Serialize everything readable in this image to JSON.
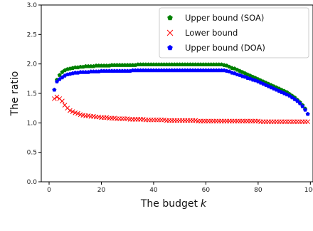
{
  "chart_data": {
    "type": "scatter",
    "title": "",
    "xlabel": "The budget",
    "xlabel_var": "k",
    "ylabel": "The ratio",
    "xlim": [
      -3,
      101
    ],
    "ylim": [
      0.0,
      3.0
    ],
    "xticks": [
      0,
      20,
      40,
      60,
      80,
      100
    ],
    "yticks": [
      0.0,
      0.5,
      1.0,
      1.5,
      2.0,
      2.5,
      3.0
    ],
    "ytick_labels": [
      "0.0",
      "0.5",
      "1.0",
      "1.5",
      "2.0",
      "2.5",
      "3.0"
    ],
    "grid": false,
    "legend_position": "top-right",
    "series": [
      {
        "name": "Upper bound (SOA)",
        "marker": "pentagon",
        "color": "#008000",
        "x": [
          2,
          3,
          4,
          5,
          6,
          7,
          8,
          9,
          10,
          11,
          12,
          13,
          14,
          15,
          16,
          17,
          18,
          19,
          20,
          21,
          22,
          23,
          24,
          25,
          26,
          27,
          28,
          29,
          30,
          31,
          32,
          33,
          34,
          35,
          36,
          37,
          38,
          39,
          40,
          41,
          42,
          43,
          44,
          45,
          46,
          47,
          48,
          49,
          50,
          51,
          52,
          53,
          54,
          55,
          56,
          57,
          58,
          59,
          60,
          61,
          62,
          63,
          64,
          65,
          66,
          67,
          68,
          69,
          70,
          71,
          72,
          73,
          74,
          75,
          76,
          77,
          78,
          79,
          80,
          81,
          82,
          83,
          84,
          85,
          86,
          87,
          88,
          89,
          90,
          91,
          92,
          93,
          94,
          95,
          96,
          97,
          98,
          99
        ],
        "y": [
          1.56,
          1.73,
          1.81,
          1.86,
          1.89,
          1.91,
          1.92,
          1.93,
          1.94,
          1.94,
          1.95,
          1.95,
          1.96,
          1.96,
          1.96,
          1.96,
          1.97,
          1.97,
          1.97,
          1.97,
          1.97,
          1.97,
          1.98,
          1.98,
          1.98,
          1.98,
          1.98,
          1.98,
          1.98,
          1.98,
          1.98,
          1.98,
          1.99,
          1.99,
          1.99,
          1.99,
          1.99,
          1.99,
          1.99,
          1.99,
          1.99,
          1.99,
          1.99,
          1.99,
          1.99,
          1.99,
          1.99,
          1.99,
          1.99,
          1.99,
          1.99,
          1.99,
          1.99,
          1.99,
          1.99,
          1.99,
          1.99,
          1.99,
          1.99,
          1.99,
          1.99,
          1.99,
          1.99,
          1.99,
          1.99,
          1.98,
          1.97,
          1.95,
          1.93,
          1.92,
          1.9,
          1.88,
          1.86,
          1.84,
          1.82,
          1.8,
          1.78,
          1.76,
          1.74,
          1.72,
          1.7,
          1.68,
          1.66,
          1.64,
          1.62,
          1.6,
          1.58,
          1.56,
          1.54,
          1.52,
          1.49,
          1.46,
          1.43,
          1.39,
          1.35,
          1.3,
          1.24,
          1.15
        ]
      },
      {
        "name": "Lower bound",
        "marker": "x",
        "color": "#ff0000",
        "x": [
          2,
          3,
          4,
          5,
          6,
          7,
          8,
          9,
          10,
          11,
          12,
          13,
          14,
          15,
          16,
          17,
          18,
          19,
          20,
          21,
          22,
          23,
          24,
          25,
          26,
          27,
          28,
          29,
          30,
          31,
          32,
          33,
          34,
          35,
          36,
          37,
          38,
          39,
          40,
          41,
          42,
          43,
          44,
          45,
          46,
          47,
          48,
          49,
          50,
          51,
          52,
          53,
          54,
          55,
          56,
          57,
          58,
          59,
          60,
          61,
          62,
          63,
          64,
          65,
          66,
          67,
          68,
          69,
          70,
          71,
          72,
          73,
          74,
          75,
          76,
          77,
          78,
          79,
          80,
          81,
          82,
          83,
          84,
          85,
          86,
          87,
          88,
          89,
          90,
          91,
          92,
          93,
          94,
          95,
          96,
          97,
          98,
          99
        ],
        "y": [
          1.41,
          1.44,
          1.41,
          1.37,
          1.3,
          1.25,
          1.21,
          1.19,
          1.17,
          1.16,
          1.14,
          1.13,
          1.12,
          1.12,
          1.11,
          1.11,
          1.1,
          1.1,
          1.09,
          1.09,
          1.09,
          1.08,
          1.08,
          1.08,
          1.07,
          1.07,
          1.07,
          1.07,
          1.07,
          1.06,
          1.06,
          1.06,
          1.06,
          1.06,
          1.06,
          1.05,
          1.05,
          1.05,
          1.05,
          1.05,
          1.05,
          1.05,
          1.05,
          1.04,
          1.04,
          1.04,
          1.04,
          1.04,
          1.04,
          1.04,
          1.04,
          1.04,
          1.04,
          1.04,
          1.04,
          1.03,
          1.03,
          1.03,
          1.03,
          1.03,
          1.03,
          1.03,
          1.03,
          1.03,
          1.03,
          1.03,
          1.03,
          1.03,
          1.03,
          1.03,
          1.03,
          1.03,
          1.03,
          1.03,
          1.03,
          1.03,
          1.03,
          1.03,
          1.03,
          1.02,
          1.02,
          1.02,
          1.02,
          1.02,
          1.02,
          1.02,
          1.02,
          1.02,
          1.02,
          1.02,
          1.02,
          1.02,
          1.02,
          1.02,
          1.02,
          1.02,
          1.02,
          1.02
        ]
      },
      {
        "name": "Upper bound (DOA)",
        "marker": "pentagon",
        "color": "#0000ff",
        "x": [
          2,
          3,
          4,
          5,
          6,
          7,
          8,
          9,
          10,
          11,
          12,
          13,
          14,
          15,
          16,
          17,
          18,
          19,
          20,
          21,
          22,
          23,
          24,
          25,
          26,
          27,
          28,
          29,
          30,
          31,
          32,
          33,
          34,
          35,
          36,
          37,
          38,
          39,
          40,
          41,
          42,
          43,
          44,
          45,
          46,
          47,
          48,
          49,
          50,
          51,
          52,
          53,
          54,
          55,
          56,
          57,
          58,
          59,
          60,
          61,
          62,
          63,
          64,
          65,
          66,
          67,
          68,
          69,
          70,
          71,
          72,
          73,
          74,
          75,
          76,
          77,
          78,
          79,
          80,
          81,
          82,
          83,
          84,
          85,
          86,
          87,
          88,
          89,
          90,
          91,
          92,
          93,
          94,
          95,
          96,
          97,
          98,
          99
        ],
        "y": [
          1.56,
          1.7,
          1.74,
          1.77,
          1.8,
          1.82,
          1.83,
          1.84,
          1.85,
          1.85,
          1.86,
          1.86,
          1.86,
          1.86,
          1.87,
          1.87,
          1.87,
          1.87,
          1.88,
          1.88,
          1.88,
          1.88,
          1.88,
          1.88,
          1.88,
          1.88,
          1.88,
          1.88,
          1.88,
          1.88,
          1.89,
          1.89,
          1.89,
          1.89,
          1.89,
          1.89,
          1.89,
          1.89,
          1.89,
          1.89,
          1.89,
          1.89,
          1.89,
          1.89,
          1.89,
          1.89,
          1.89,
          1.89,
          1.89,
          1.89,
          1.89,
          1.89,
          1.89,
          1.89,
          1.89,
          1.89,
          1.89,
          1.89,
          1.89,
          1.89,
          1.89,
          1.89,
          1.89,
          1.89,
          1.89,
          1.89,
          1.88,
          1.87,
          1.85,
          1.84,
          1.82,
          1.81,
          1.79,
          1.78,
          1.76,
          1.75,
          1.73,
          1.72,
          1.7,
          1.68,
          1.66,
          1.64,
          1.62,
          1.6,
          1.58,
          1.56,
          1.54,
          1.52,
          1.5,
          1.48,
          1.46,
          1.43,
          1.4,
          1.37,
          1.33,
          1.28,
          1.22,
          1.15
        ]
      }
    ]
  }
}
